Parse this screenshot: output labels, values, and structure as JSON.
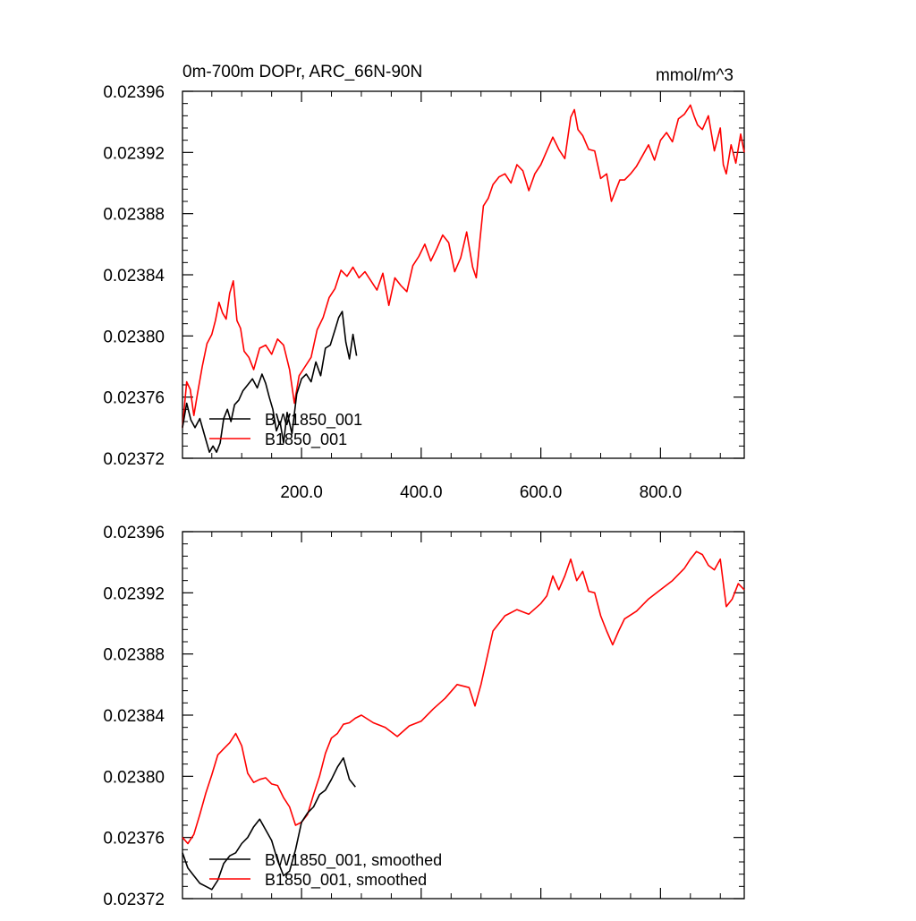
{
  "chart_data": [
    {
      "type": "line",
      "title_left": "0m-700m DOPr, ARC_66N-90N",
      "title_right": "mmol/m^3",
      "xlim": [
        1,
        940
      ],
      "ylim": [
        0.02372,
        0.02396
      ],
      "x_ticks": [
        200,
        400,
        600,
        800
      ],
      "x_tick_labels": [
        "200.0",
        "400.0",
        "600.0",
        "800.0"
      ],
      "y_ticks": [
        0.02372,
        0.02376,
        0.0238,
        0.02384,
        0.02388,
        0.02392,
        0.02396
      ],
      "y_tick_labels": [
        "0.02372",
        "0.02376",
        "0.02380",
        "0.02384",
        "0.02388",
        "0.02392",
        "0.02396"
      ],
      "legend": [
        "BW1850_001",
        "B1850_001"
      ],
      "series": [
        {
          "name": "BW1850_001",
          "color": "#000000",
          "x": [
            1,
            8,
            15,
            22,
            30,
            38,
            46,
            52,
            58,
            64,
            70,
            76,
            82,
            88,
            95,
            102,
            110,
            118,
            126,
            134,
            140,
            146,
            152,
            158,
            164,
            170,
            176,
            184,
            192,
            200,
            208,
            216,
            224,
            232,
            240,
            248,
            256,
            262,
            268,
            274,
            280,
            286,
            292
          ],
          "values": [
            0.02374,
            0.023756,
            0.023745,
            0.02374,
            0.023746,
            0.023735,
            0.023724,
            0.023728,
            0.023724,
            0.02373,
            0.023746,
            0.023752,
            0.023744,
            0.023755,
            0.023758,
            0.023764,
            0.023768,
            0.023772,
            0.023766,
            0.023775,
            0.023769,
            0.02376,
            0.023752,
            0.023738,
            0.023744,
            0.02373,
            0.02375,
            0.023736,
            0.023762,
            0.023772,
            0.023775,
            0.02377,
            0.023783,
            0.023774,
            0.023792,
            0.023794,
            0.023804,
            0.023812,
            0.023816,
            0.023796,
            0.023785,
            0.023801,
            0.023787
          ]
        },
        {
          "name": "B1850_001",
          "color": "#ff0000",
          "x": [
            1,
            8,
            14,
            20,
            26,
            34,
            42,
            50,
            56,
            62,
            68,
            74,
            80,
            86,
            92,
            98,
            104,
            112,
            120,
            130,
            140,
            150,
            160,
            170,
            180,
            188,
            196,
            206,
            216,
            226,
            236,
            246,
            256,
            266,
            276,
            286,
            296,
            306,
            316,
            326,
            336,
            346,
            356,
            366,
            376,
            386,
            396,
            406,
            416,
            426,
            436,
            446,
            456,
            466,
            476,
            486,
            492,
            498,
            504,
            512,
            520,
            530,
            540,
            550,
            560,
            570,
            580,
            590,
            600,
            610,
            620,
            630,
            640,
            650,
            656,
            662,
            670,
            680,
            690,
            700,
            710,
            718,
            724,
            732,
            740,
            750,
            760,
            770,
            780,
            790,
            800,
            810,
            820,
            830,
            840,
            850,
            856,
            862,
            870,
            880,
            890,
            900,
            905,
            910,
            918,
            926,
            934,
            940
          ],
          "values": [
            0.02374,
            0.02377,
            0.023765,
            0.023748,
            0.023762,
            0.02378,
            0.023795,
            0.023801,
            0.02381,
            0.023822,
            0.023815,
            0.023811,
            0.023828,
            0.023836,
            0.02381,
            0.023805,
            0.02379,
            0.023786,
            0.023778,
            0.023792,
            0.023794,
            0.023788,
            0.023798,
            0.023794,
            0.023778,
            0.023756,
            0.023774,
            0.02378,
            0.023786,
            0.023804,
            0.023812,
            0.023825,
            0.023831,
            0.023843,
            0.023839,
            0.023845,
            0.023838,
            0.023842,
            0.023836,
            0.02383,
            0.023841,
            0.02382,
            0.023838,
            0.023833,
            0.023829,
            0.023846,
            0.023852,
            0.02386,
            0.023849,
            0.023857,
            0.023866,
            0.023861,
            0.023842,
            0.023851,
            0.023868,
            0.023845,
            0.023838,
            0.023862,
            0.023885,
            0.02389,
            0.023899,
            0.023904,
            0.023906,
            0.0239,
            0.023912,
            0.023908,
            0.023895,
            0.023906,
            0.023912,
            0.023921,
            0.02393,
            0.023922,
            0.023916,
            0.023943,
            0.023948,
            0.023935,
            0.023931,
            0.023922,
            0.023921,
            0.023903,
            0.023906,
            0.023888,
            0.023894,
            0.023902,
            0.023902,
            0.023906,
            0.023911,
            0.023918,
            0.023925,
            0.023915,
            0.023928,
            0.023933,
            0.023927,
            0.023942,
            0.023945,
            0.023951,
            0.023944,
            0.023938,
            0.023935,
            0.023944,
            0.023921,
            0.023936,
            0.023912,
            0.023906,
            0.023925,
            0.023913,
            0.023932,
            0.02392
          ]
        }
      ]
    },
    {
      "type": "line",
      "xlim": [
        1,
        940
      ],
      "ylim": [
        0.02372,
        0.02396
      ],
      "x_ticks": [
        200,
        400,
        600,
        800
      ],
      "y_ticks": [
        0.02372,
        0.02376,
        0.0238,
        0.02384,
        0.02388,
        0.02392,
        0.02396
      ],
      "y_tick_labels": [
        "0.02372",
        "0.02376",
        "0.02380",
        "0.02384",
        "0.02388",
        "0.02392",
        "0.02396"
      ],
      "legend": [
        "BW1850_001, smoothed",
        "B1850_001, smoothed"
      ],
      "series": [
        {
          "name": "BW1850_001, smoothed",
          "color": "#000000",
          "x": [
            1,
            10,
            20,
            30,
            40,
            50,
            60,
            70,
            80,
            90,
            100,
            110,
            120,
            130,
            140,
            150,
            160,
            170,
            180,
            190,
            200,
            210,
            220,
            230,
            240,
            250,
            260,
            270,
            280,
            290
          ],
          "values": [
            0.02375,
            0.02374,
            0.023735,
            0.02373,
            0.023728,
            0.023726,
            0.023732,
            0.023743,
            0.023748,
            0.02375,
            0.023756,
            0.02376,
            0.023767,
            0.023772,
            0.023765,
            0.023758,
            0.023745,
            0.023735,
            0.023738,
            0.023752,
            0.02377,
            0.023776,
            0.02378,
            0.023788,
            0.023791,
            0.023798,
            0.023806,
            0.023812,
            0.023798,
            0.023793
          ]
        },
        {
          "name": "B1850_001, smoothed",
          "color": "#ff0000",
          "x": [
            1,
            10,
            20,
            30,
            40,
            50,
            60,
            70,
            80,
            90,
            100,
            110,
            120,
            130,
            140,
            150,
            160,
            170,
            180,
            190,
            200,
            210,
            220,
            230,
            240,
            250,
            260,
            270,
            280,
            290,
            300,
            320,
            340,
            360,
            380,
            400,
            420,
            440,
            460,
            480,
            490,
            500,
            520,
            540,
            560,
            580,
            600,
            610,
            620,
            630,
            640,
            650,
            660,
            670,
            680,
            690,
            700,
            710,
            720,
            730,
            740,
            760,
            780,
            800,
            820,
            840,
            850,
            860,
            870,
            880,
            890,
            900,
            910,
            920,
            930,
            940
          ],
          "values": [
            0.02376,
            0.023756,
            0.023762,
            0.023775,
            0.023789,
            0.023801,
            0.023814,
            0.023818,
            0.023822,
            0.023828,
            0.02382,
            0.023802,
            0.023796,
            0.023798,
            0.023799,
            0.023795,
            0.023794,
            0.023786,
            0.02378,
            0.023768,
            0.02377,
            0.023775,
            0.023788,
            0.0238,
            0.023815,
            0.023825,
            0.023828,
            0.023834,
            0.023835,
            0.023838,
            0.02384,
            0.023835,
            0.023832,
            0.023826,
            0.023833,
            0.023836,
            0.023844,
            0.023851,
            0.02386,
            0.023858,
            0.023846,
            0.02386,
            0.023895,
            0.023905,
            0.023909,
            0.023906,
            0.023913,
            0.023918,
            0.023931,
            0.023922,
            0.023931,
            0.023942,
            0.023928,
            0.023934,
            0.023921,
            0.02392,
            0.023905,
            0.023895,
            0.023886,
            0.023895,
            0.023903,
            0.023908,
            0.023916,
            0.023922,
            0.023928,
            0.023936,
            0.023942,
            0.023947,
            0.023945,
            0.023938,
            0.023935,
            0.023942,
            0.023911,
            0.023916,
            0.023926,
            0.023922
          ]
        }
      ]
    }
  ]
}
